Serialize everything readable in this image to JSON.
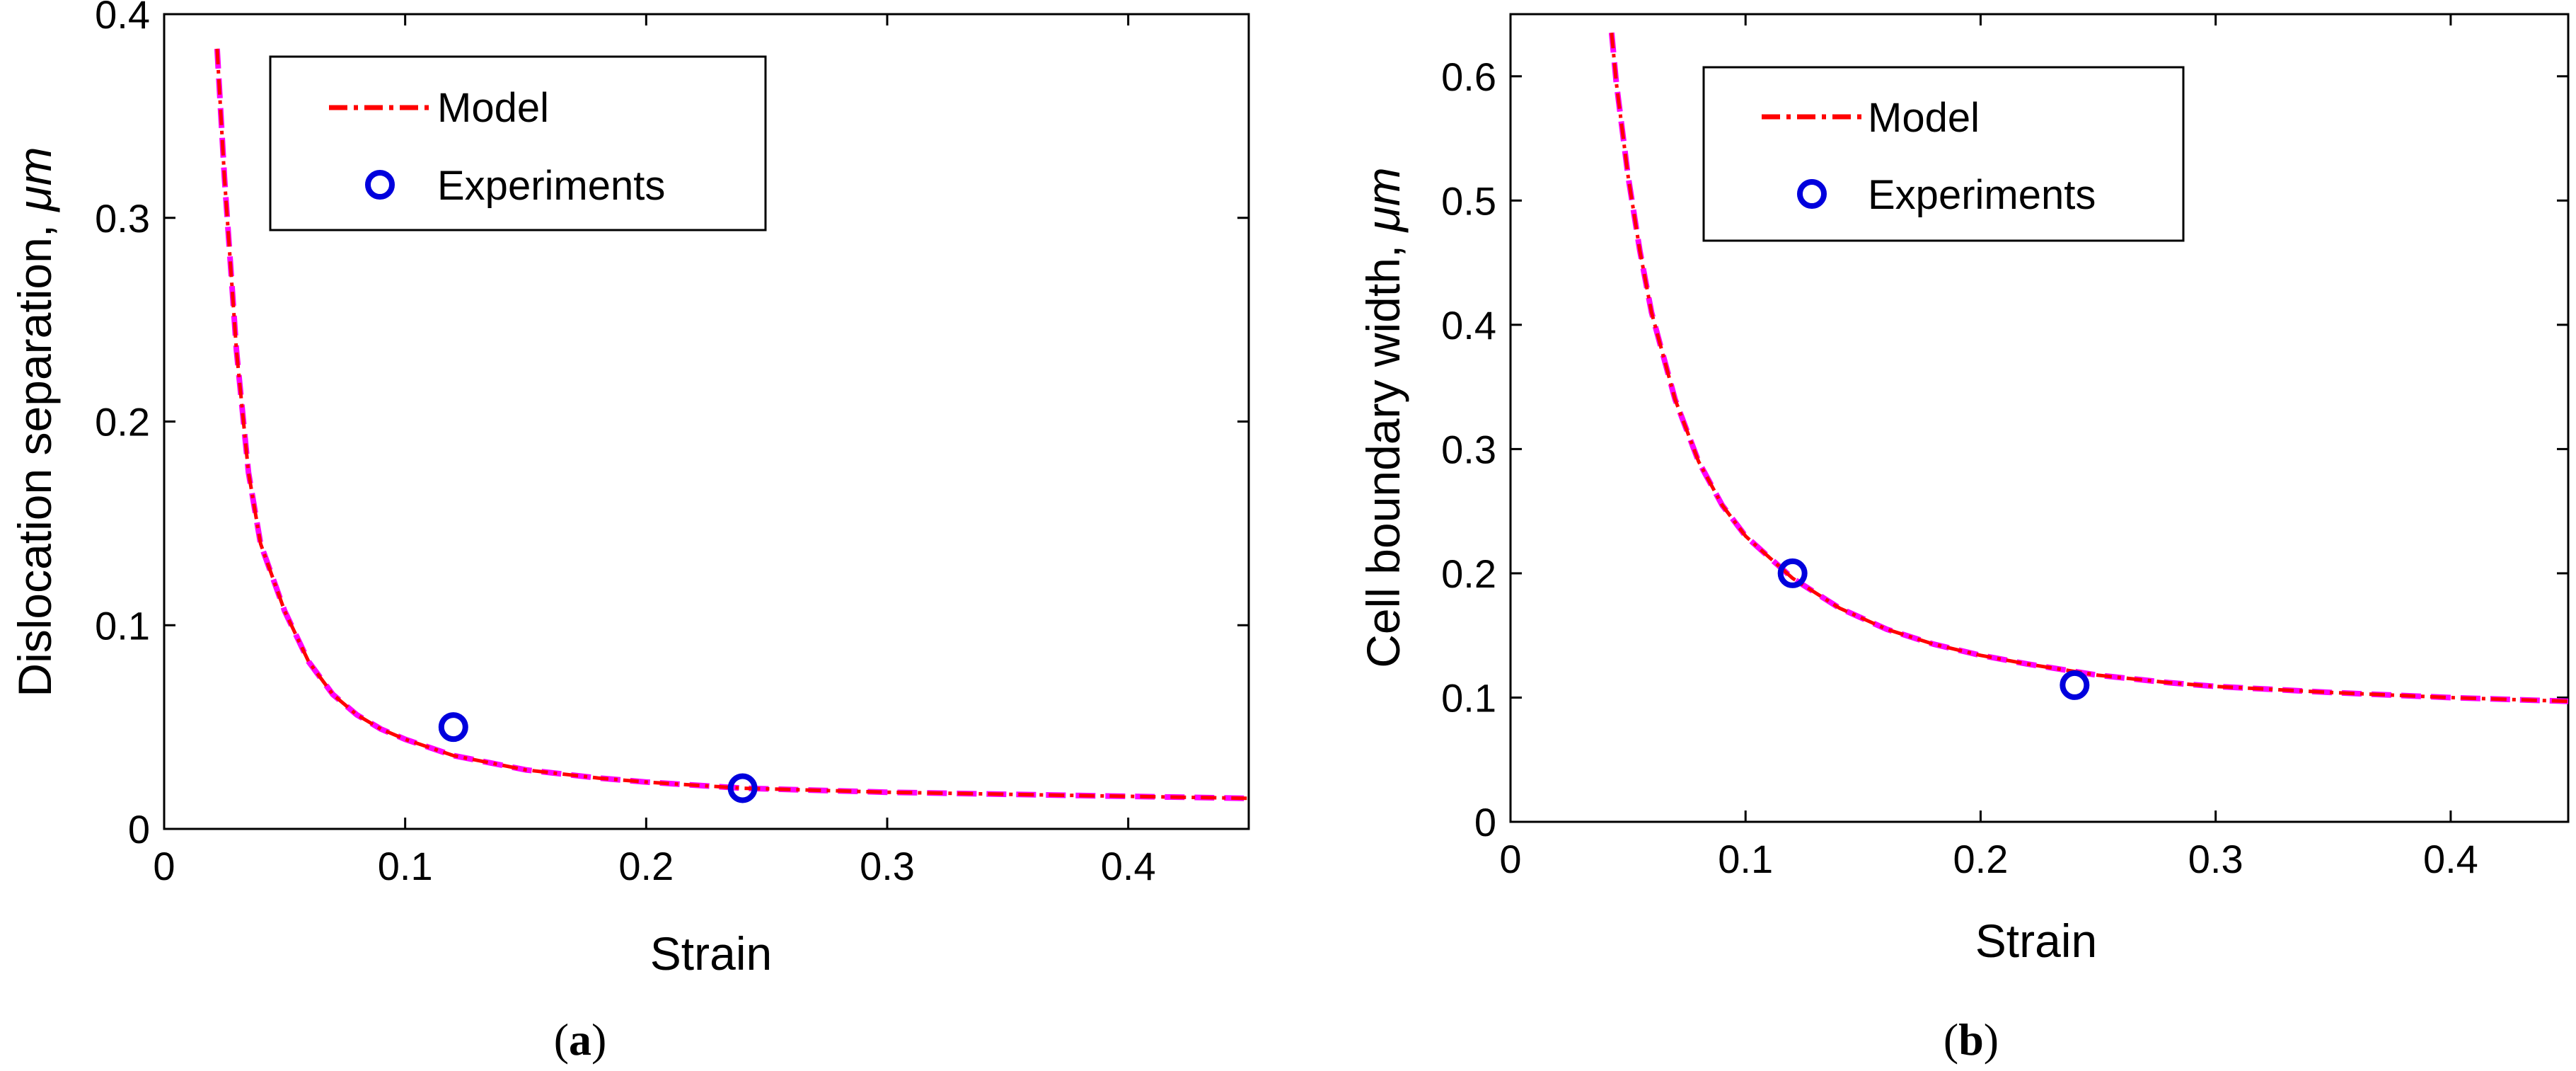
{
  "figure": {
    "panels": [
      {
        "id": "a",
        "caption_open": "(",
        "caption_letter": "a",
        "caption_close": ")",
        "legend": {
          "model_label": "Model",
          "experiments_label": "Experiments"
        }
      },
      {
        "id": "b",
        "caption_open": "(",
        "caption_letter": "b",
        "caption_close": ")",
        "legend": {
          "model_label": "Model",
          "experiments_label": "Experiments"
        }
      }
    ]
  },
  "colors": {
    "model_dashdot": "#ff0000",
    "model_dashed": "#ff00ff",
    "experiments_marker": "#0000dd",
    "axes": "#000000"
  },
  "chart_data": [
    {
      "type": "line",
      "title": "",
      "xlabel": "Strain",
      "ylabel_prefix": "Dislocation separation, ",
      "ylabel_unit": "μm",
      "xlim": [
        0,
        0.45
      ],
      "ylim": [
        0,
        0.4
      ],
      "xticks": [
        0,
        0.1,
        0.2,
        0.3,
        0.4
      ],
      "yticks": [
        0,
        0.1,
        0.2,
        0.3,
        0.4
      ],
      "xtick_labels": [
        "0",
        "0.1",
        "0.2",
        "0.3",
        "0.4"
      ],
      "ytick_labels": [
        "0",
        "0.1",
        "0.2",
        "0.3",
        "0.4"
      ],
      "grid": false,
      "legend_position": "top-left",
      "series": [
        {
          "name": "Model",
          "style": "dash-dot red over dashed magenta",
          "x": [
            0.022,
            0.025,
            0.03,
            0.035,
            0.04,
            0.05,
            0.06,
            0.07,
            0.08,
            0.09,
            0.1,
            0.12,
            0.15,
            0.18,
            0.2,
            0.24,
            0.3,
            0.35,
            0.4,
            0.45
          ],
          "y": [
            0.383,
            0.32,
            0.235,
            0.175,
            0.14,
            0.107,
            0.082,
            0.066,
            0.056,
            0.049,
            0.044,
            0.036,
            0.029,
            0.025,
            0.023,
            0.02,
            0.018,
            0.017,
            0.016,
            0.015
          ]
        },
        {
          "name": "Experiments",
          "style": "open blue circles",
          "x": [
            0.12,
            0.24
          ],
          "y": [
            0.05,
            0.02
          ]
        }
      ]
    },
    {
      "type": "line",
      "title": "",
      "xlabel": "Strain",
      "ylabel_prefix": "Cell boundary width, ",
      "ylabel_unit": "μm",
      "xlim": [
        0,
        0.45
      ],
      "ylim": [
        0,
        0.65
      ],
      "xticks": [
        0,
        0.1,
        0.2,
        0.3,
        0.4
      ],
      "yticks": [
        0,
        0.1,
        0.2,
        0.3,
        0.4,
        0.5,
        0.6
      ],
      "xtick_labels": [
        "0",
        "0.1",
        "0.2",
        "0.3",
        "0.4"
      ],
      "ytick_labels": [
        "0",
        "0.1",
        "0.2",
        "0.3",
        "0.4",
        "0.5",
        "0.6"
      ],
      "grid": false,
      "legend_position": "top-left",
      "series": [
        {
          "name": "Model",
          "style": "dash-dot red over dashed magenta",
          "x": [
            0.043,
            0.045,
            0.05,
            0.055,
            0.06,
            0.07,
            0.08,
            0.09,
            0.1,
            0.12,
            0.14,
            0.16,
            0.18,
            0.2,
            0.22,
            0.25,
            0.28,
            0.3,
            0.35,
            0.4,
            0.45
          ],
          "y": [
            0.635,
            0.595,
            0.52,
            0.46,
            0.41,
            0.34,
            0.29,
            0.255,
            0.23,
            0.196,
            0.172,
            0.155,
            0.143,
            0.134,
            0.127,
            0.118,
            0.112,
            0.109,
            0.104,
            0.1,
            0.097
          ]
        },
        {
          "name": "Experiments",
          "style": "open blue circles",
          "x": [
            0.12,
            0.24
          ],
          "y": [
            0.2,
            0.11
          ]
        }
      ]
    }
  ]
}
